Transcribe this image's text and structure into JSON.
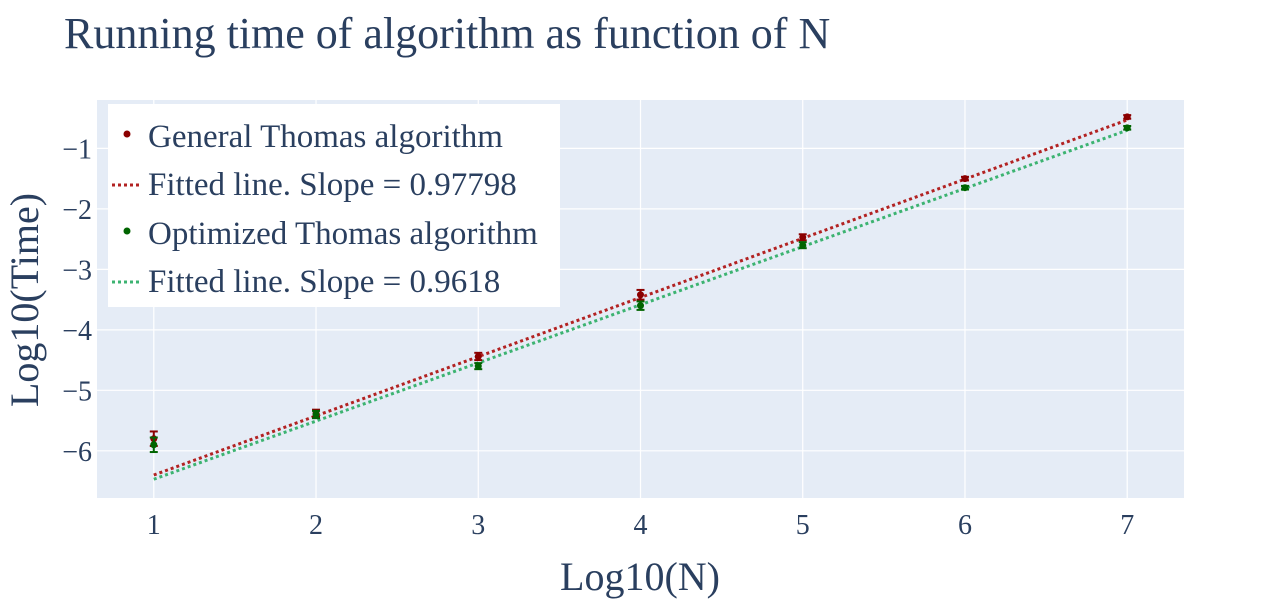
{
  "chart_data": {
    "type": "scatter",
    "title": "Running time of algorithm as function of N",
    "xlabel": "Log10(N)",
    "ylabel": "Log10(Time)",
    "xlim": [
      0.65,
      7.35
    ],
    "ylim": [
      -6.78,
      -0.2
    ],
    "xticks": [
      1,
      2,
      3,
      4,
      5,
      6,
      7
    ],
    "yticks": [
      -1,
      -2,
      -3,
      -4,
      -5,
      -6
    ],
    "tick_labels_x": [
      "1",
      "2",
      "3",
      "4",
      "5",
      "6",
      "7"
    ],
    "tick_labels_y": [
      "−1",
      "−2",
      "−3",
      "−4",
      "−5",
      "−6"
    ],
    "grid": true,
    "legend_position": "top-left",
    "series": [
      {
        "name": "General Thomas algorithm",
        "mode": "markers",
        "color": "#8b0000",
        "x": [
          1,
          2,
          3,
          4,
          5,
          6,
          7
        ],
        "y": [
          -5.8,
          -5.38,
          -4.44,
          -3.42,
          -2.47,
          -1.5,
          -0.48
        ],
        "error": [
          0.12,
          0.06,
          0.06,
          0.08,
          0.05,
          0.03,
          0.03
        ]
      },
      {
        "name": "Fitted line. Slope = 0.97798",
        "mode": "line",
        "dash": "dot",
        "color": "#b22222",
        "x": [
          1,
          7
        ],
        "y": [
          -6.4,
          -0.53
        ]
      },
      {
        "name": "Optimized Thomas algorithm",
        "mode": "markers",
        "color": "#006400",
        "x": [
          1,
          2,
          3,
          4,
          5,
          6,
          7
        ],
        "y": [
          -5.9,
          -5.4,
          -4.6,
          -3.6,
          -2.6,
          -1.65,
          -0.66
        ],
        "error": [
          0.12,
          0.06,
          0.05,
          0.07,
          0.05,
          0.03,
          0.03
        ]
      },
      {
        "name": "Fitted line. Slope = 0.9618",
        "mode": "line",
        "dash": "dot",
        "color": "#3cb371",
        "x": [
          1,
          7
        ],
        "y": [
          -6.47,
          -0.7
        ]
      }
    ]
  },
  "colors": {
    "plot_bg": "#e5ecf6",
    "grid": "#ffffff",
    "text": "#2a3f5f"
  }
}
